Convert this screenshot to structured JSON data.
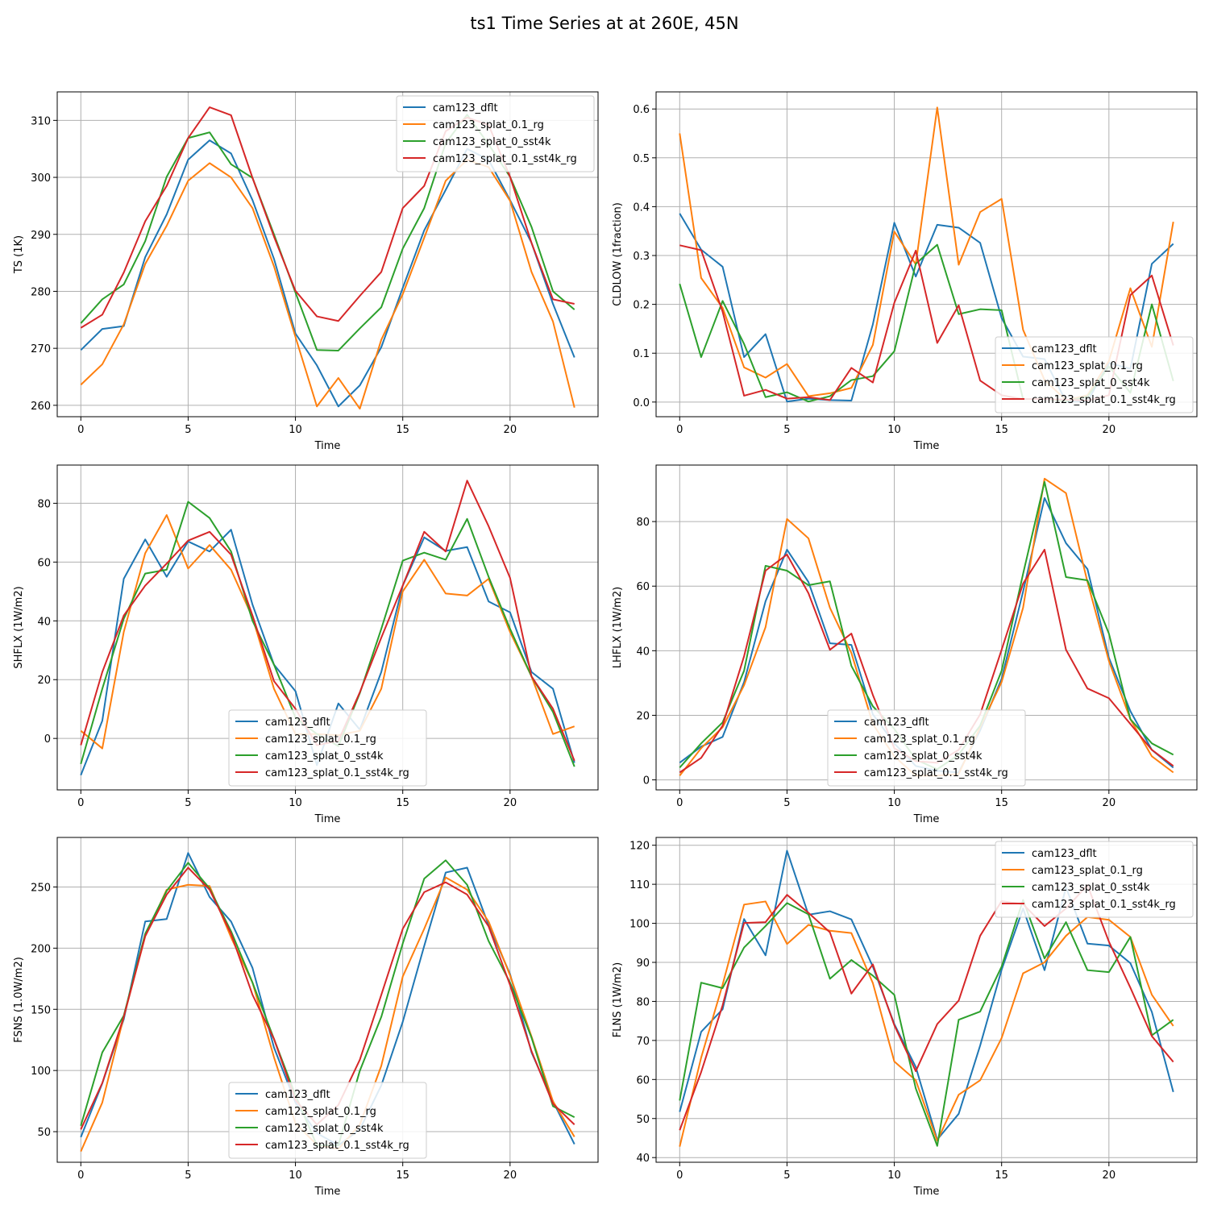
{
  "figure_title": "ts1 Time Series at at 260E, 45N",
  "series_colors": {
    "cam123_dflt": "#1f77b4",
    "cam123_splat_0.1_rg": "#ff7f0e",
    "cam123_splat_0_sst4k": "#2ca02c",
    "cam123_splat_0.1_sst4k_rg": "#d62728"
  },
  "chart_data": [
    {
      "type": "line",
      "xlabel": "Time",
      "ylabel": "TS (1K)",
      "xlim": [
        -1.1,
        24.1
      ],
      "ylim": [
        315.0,
        258.0
      ],
      "xticks": [
        0,
        5,
        10,
        15,
        20
      ],
      "yticks": [
        260,
        270,
        280,
        290,
        300,
        310
      ],
      "legend": "top-right",
      "grid": true,
      "series": [
        {
          "name": "cam123_dflt",
          "values": [
            269.7,
            273.4,
            273.9,
            286.0,
            293.5,
            303.1,
            306.5,
            304.2,
            296.0,
            285.7,
            272.6,
            267.0,
            259.8,
            263.5,
            270.2,
            280.6,
            290.7,
            297.8,
            305.0,
            303.1,
            296.0,
            288.5,
            277.8,
            268.4
          ]
        },
        {
          "name": "cam123_splat_0.1_rg",
          "values": [
            263.6,
            267.2,
            274.2,
            284.8,
            291.5,
            299.4,
            302.5,
            300.0,
            294.6,
            284.4,
            272.0,
            259.8,
            264.8,
            259.4,
            271.5,
            279.5,
            289.4,
            299.4,
            303.1,
            301.8,
            295.9,
            283.4,
            274.7,
            259.6
          ]
        },
        {
          "name": "cam123_splat_0_sst4k",
          "values": [
            274.4,
            278.6,
            281.2,
            288.8,
            300.1,
            306.9,
            307.9,
            302.3,
            299.9,
            290.0,
            279.8,
            269.7,
            269.6,
            273.5,
            277.2,
            287.5,
            294.6,
            306.0,
            311.0,
            305.8,
            300.1,
            291.3,
            280.0,
            276.8
          ]
        },
        {
          "name": "cam123_splat_0.1_sst4k_rg",
          "values": [
            273.6,
            275.9,
            283.3,
            292.3,
            298.5,
            306.9,
            312.3,
            310.9,
            299.9,
            289.6,
            280.1,
            275.6,
            274.8,
            279.2,
            283.4,
            294.6,
            298.5,
            308.1,
            310.5,
            309.2,
            300.1,
            288.5,
            278.6,
            277.8
          ]
        }
      ]
    },
    {
      "type": "line",
      "xlabel": "Time",
      "ylabel": "CLDLOW (1fraction)",
      "xlim": [
        -1.1,
        24.1
      ],
      "ylim": [
        0.635,
        -0.03
      ],
      "xticks": [
        0,
        5,
        10,
        15,
        20
      ],
      "yticks": [
        0.0,
        0.1,
        0.2,
        0.3,
        0.4,
        0.5,
        0.6
      ],
      "ytick_labels": [
        "0.0",
        "0.1",
        "0.2",
        "0.3",
        "0.4",
        "0.5",
        "0.6"
      ],
      "legend": "bottom-right",
      "grid": true,
      "series": [
        {
          "name": "cam123_dflt",
          "values": [
            0.386,
            0.312,
            0.277,
            0.092,
            0.139,
            0.001,
            0.007,
            0.004,
            0.003,
            0.159,
            0.367,
            0.257,
            0.363,
            0.357,
            0.326,
            0.172,
            0.093,
            0.088,
            0.001,
            0.001,
            0.08,
            0.068,
            0.283,
            0.324
          ]
        },
        {
          "name": "cam123_splat_0.1_rg",
          "values": [
            0.55,
            0.254,
            0.193,
            0.071,
            0.05,
            0.078,
            0.012,
            0.018,
            0.029,
            0.117,
            0.349,
            0.282,
            0.603,
            0.281,
            0.389,
            0.416,
            0.148,
            0.045,
            0.004,
            0.014,
            0.084,
            0.233,
            0.113,
            0.369
          ]
        },
        {
          "name": "cam123_splat_0_sst4k",
          "values": [
            0.242,
            0.092,
            0.207,
            0.119,
            0.01,
            0.02,
            0.001,
            0.012,
            0.045,
            0.053,
            0.104,
            0.283,
            0.322,
            0.18,
            0.19,
            0.188,
            0.006,
            0.006,
            0.002,
            0.011,
            0.073,
            0.019,
            0.2,
            0.043
          ]
        },
        {
          "name": "cam123_splat_0.1_sst4k_rg",
          "values": [
            0.321,
            0.311,
            0.185,
            0.013,
            0.025,
            0.007,
            0.01,
            0.004,
            0.07,
            0.04,
            0.203,
            0.31,
            0.121,
            0.198,
            0.044,
            0.014,
            0.006,
            0.006,
            0.005,
            0.003,
            0.014,
            0.219,
            0.259,
            0.116
          ]
        }
      ]
    },
    {
      "type": "line",
      "xlabel": "Time",
      "ylabel": "SHFLX (1W/m2)",
      "xlim": [
        -1.1,
        24.1
      ],
      "ylim": [
        93.0,
        -17.5
      ],
      "xticks": [
        0,
        5,
        10,
        15,
        20
      ],
      "yticks": [
        0,
        20,
        40,
        60,
        80
      ],
      "legend": "bottom-center",
      "grid": true,
      "series": [
        {
          "name": "cam123_dflt",
          "values": [
            -12.5,
            6.0,
            54.3,
            67.7,
            55.0,
            67.0,
            63.6,
            71.0,
            45.5,
            25.1,
            16.1,
            -9.1,
            11.9,
            3.0,
            22.6,
            52.0,
            68.4,
            63.8,
            65.1,
            46.6,
            42.9,
            22.6,
            16.9,
            -8.3
          ]
        },
        {
          "name": "cam123_splat_0.1_rg",
          "values": [
            2.6,
            -3.4,
            36.2,
            63.0,
            76.0,
            57.8,
            65.8,
            57.4,
            41.1,
            16.9,
            1.5,
            1.5,
            1.1,
            2.6,
            16.9,
            50.0,
            60.8,
            49.3,
            48.6,
            54.3,
            36.2,
            21.1,
            1.5,
            4.1
          ]
        },
        {
          "name": "cam123_splat_0_sst4k",
          "values": [
            -8.7,
            16.9,
            40.7,
            56.1,
            57.4,
            80.5,
            75.0,
            63.6,
            40.0,
            25.1,
            7.1,
            1.5,
            -2.6,
            15.4,
            37.3,
            60.5,
            63.2,
            60.8,
            74.7,
            55.0,
            37.3,
            21.1,
            9.0,
            -9.6
          ]
        },
        {
          "name": "cam123_splat_0.1_sst4k_rg",
          "values": [
            -2.3,
            22.6,
            41.8,
            52.0,
            59.5,
            67.3,
            70.3,
            62.5,
            41.8,
            19.5,
            10.1,
            -2.3,
            -0.8,
            15.7,
            34.3,
            52.0,
            70.3,
            63.6,
            87.7,
            72.2,
            54.6,
            21.1,
            10.1,
            -7.6
          ]
        }
      ]
    },
    {
      "type": "line",
      "xlabel": "Time",
      "ylabel": "LHFLX (1W/m2)",
      "xlim": [
        -1.1,
        24.1
      ],
      "ylim": [
        97.5,
        -3.1
      ],
      "xticks": [
        0,
        5,
        10,
        15,
        20
      ],
      "yticks": [
        0,
        20,
        40,
        60,
        80
      ],
      "legend": "bottom-center",
      "grid": true,
      "series": [
        {
          "name": "cam123_dflt",
          "values": [
            5.3,
            10.3,
            13.3,
            30.3,
            55.3,
            71.3,
            61.3,
            42.3,
            41.8,
            20.3,
            11.3,
            4.3,
            2.8,
            2.3,
            15.3,
            31.3,
            58.3,
            87.3,
            73.3,
            65.3,
            37.8,
            21.3,
            9.3,
            3.8
          ]
        },
        {
          "name": "cam123_splat_0.1_rg",
          "values": [
            1.3,
            9.8,
            16.3,
            29.3,
            47.3,
            80.8,
            74.8,
            53.3,
            39.3,
            17.3,
            7.3,
            1.3,
            1.3,
            1.8,
            16.3,
            30.3,
            53.3,
            93.3,
            88.8,
            61.3,
            36.8,
            18.8,
            7.3,
            2.3
          ]
        },
        {
          "name": "cam123_splat_0_sst4k",
          "values": [
            3.8,
            11.3,
            17.8,
            33.8,
            66.3,
            64.8,
            60.3,
            61.5,
            35.3,
            22.8,
            15.8,
            6.3,
            3.3,
            7.8,
            16.8,
            33.8,
            63.8,
            92.3,
            62.8,
            61.8,
            45.3,
            18.8,
            11.3,
            7.8
          ]
        },
        {
          "name": "cam123_splat_0.1_sst4k_rg",
          "values": [
            2.3,
            6.8,
            16.8,
            38.3,
            64.8,
            69.8,
            57.8,
            40.3,
            45.3,
            26.3,
            9.8,
            5.8,
            5.3,
            9.3,
            20.3,
            40.3,
            60.8,
            71.3,
            40.3,
            28.3,
            25.3,
            17.3,
            9.3,
            4.3
          ]
        }
      ]
    },
    {
      "type": "line",
      "xlabel": "Time",
      "ylabel": "FSNS (1.0W/m2)",
      "xlim": [
        -1.1,
        24.1
      ],
      "ylim": [
        290.5,
        25.0
      ],
      "xticks": [
        0,
        5,
        10,
        15,
        20
      ],
      "yticks": [
        50,
        100,
        150,
        200,
        250
      ],
      "legend": "bottom-center",
      "grid": true,
      "series": [
        {
          "name": "cam123_dflt",
          "values": [
            45.5,
            89.5,
            141.8,
            221.8,
            223.8,
            277.8,
            241.8,
            221.8,
            183.8,
            118.8,
            73.8,
            48.8,
            38.8,
            51.8,
            87.8,
            139.8,
            201.8,
            261.8,
            265.8,
            218.8,
            178.8,
            114.8,
            74.8,
            39.8
          ]
        },
        {
          "name": "cam123_splat_0.1_rg",
          "values": [
            33.8,
            73.8,
            143.8,
            209.8,
            247.8,
            251.8,
            250.8,
            208.8,
            171.8,
            110.8,
            56.8,
            39.3,
            35.8,
            55.8,
            103.8,
            176.8,
            215.8,
            257.8,
            247.8,
            221.8,
            177.8,
            127.8,
            74.8,
            45.8
          ]
        },
        {
          "name": "cam123_splat_0_sst4k",
          "values": [
            54.8,
            114.8,
            144.8,
            211.8,
            246.8,
            269.8,
            248.8,
            213.8,
            171.8,
            125.8,
            79.8,
            38.8,
            38.8,
            99.8,
            143.8,
            203.8,
            256.8,
            271.8,
            251.8,
            205.8,
            171.8,
            126.8,
            70.8,
            61.8
          ]
        },
        {
          "name": "cam123_splat_0.1_sst4k_rg",
          "values": [
            51.8,
            89.8,
            143.8,
            209.8,
            243.8,
            265.8,
            247.8,
            211.8,
            161.8,
            125.8,
            75.8,
            55.8,
            71.8,
            108.8,
            161.8,
            215.8,
            245.8,
            253.8,
            243.8,
            217.8,
            169.8,
            115.8,
            72.8,
            55.8
          ]
        }
      ]
    },
    {
      "type": "line",
      "xlabel": "Time",
      "ylabel": "FLNS (1W/m2)",
      "xlim": [
        -1.1,
        24.1
      ],
      "ylim": [
        122.0,
        38.8
      ],
      "xticks": [
        0,
        5,
        10,
        15,
        20
      ],
      "yticks": [
        40,
        50,
        60,
        70,
        80,
        90,
        100,
        110,
        120
      ],
      "legend": "top-right",
      "grid": true,
      "series": [
        {
          "name": "cam123_dflt",
          "values": [
            51.7,
            72.2,
            78.0,
            101.1,
            91.8,
            118.6,
            102.2,
            103.1,
            101.0,
            88.9,
            74.2,
            63.2,
            44.6,
            51.2,
            68.7,
            88.1,
            103.8,
            88.0,
            109.2,
            94.8,
            94.3,
            89.8,
            77.3,
            56.8
          ]
        },
        {
          "name": "cam123_splat_0.1_rg",
          "values": [
            42.8,
            65.6,
            84.3,
            104.8,
            105.6,
            94.7,
            99.6,
            98.1,
            97.5,
            84.7,
            64.6,
            59.8,
            44.3,
            56.1,
            59.8,
            70.6,
            87.2,
            90.0,
            96.8,
            101.6,
            100.9,
            96.5,
            81.7,
            73.7
          ]
        },
        {
          "name": "cam123_splat_0_sst4k",
          "values": [
            54.6,
            84.8,
            83.4,
            93.8,
            99.3,
            105.2,
            102.3,
            85.8,
            90.6,
            86.6,
            81.7,
            57.7,
            43.0,
            75.3,
            77.4,
            88.9,
            106.0,
            91.0,
            100.3,
            88.0,
            87.5,
            96.5,
            71.3,
            75.3
          ]
        },
        {
          "name": "cam123_splat_0.1_sst4k_rg",
          "values": [
            47.0,
            61.9,
            79.0,
            100.1,
            100.3,
            107.3,
            102.7,
            97.7,
            82.0,
            89.5,
            73.9,
            62.1,
            74.2,
            80.2,
            96.8,
            105.7,
            104.9,
            99.3,
            103.8,
            109.8,
            95.3,
            83.5,
            71.1,
            64.5
          ]
        }
      ]
    }
  ]
}
